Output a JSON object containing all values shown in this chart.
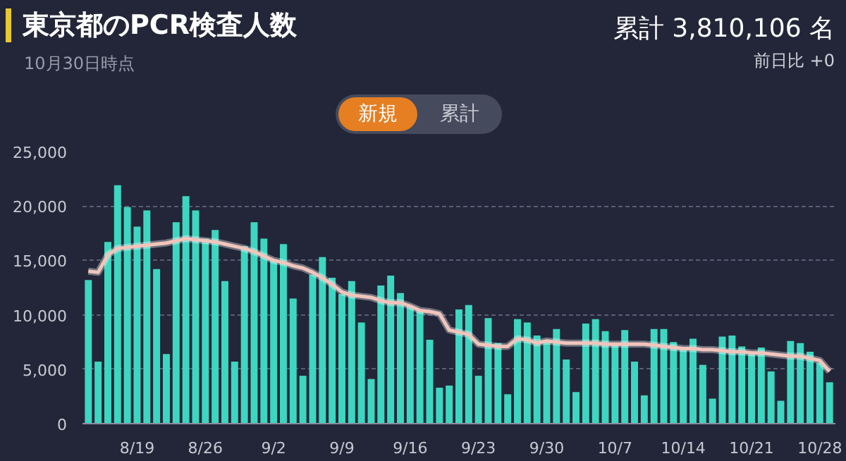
{
  "chart_data": {
    "type": "bar",
    "title": "東京都のPCR検査人数",
    "subtitle": "10月30日時点",
    "annotations": [
      "累計 3,810,106 名",
      "前日比 +0",
      "新規",
      "累計"
    ],
    "categories": [
      null,
      null,
      null,
      null,
      null,
      "8/19",
      null,
      null,
      null,
      null,
      null,
      null,
      "8/26",
      null,
      null,
      null,
      null,
      null,
      null,
      "9/2",
      null,
      null,
      null,
      null,
      null,
      null,
      "9/9",
      null,
      null,
      null,
      null,
      null,
      null,
      "9/16",
      null,
      null,
      null,
      null,
      null,
      null,
      "9/23",
      null,
      null,
      null,
      null,
      null,
      null,
      "9/30",
      null,
      null,
      null,
      null,
      null,
      null,
      "10/7",
      null,
      null,
      null,
      null,
      null,
      null,
      "10/14",
      null,
      null,
      null,
      null,
      null,
      null,
      "10/21",
      null,
      null,
      null,
      null,
      null,
      null,
      "10/28",
      null
    ],
    "series": [
      {
        "color": "#3dd6c0",
        "values": [
          13200,
          5700,
          16700,
          21900,
          19900,
          18100,
          19600,
          14200,
          6400,
          18500,
          20900,
          19600,
          17000,
          17800,
          13100,
          5700,
          16300,
          18500,
          17000,
          15000,
          16500,
          11500,
          4400,
          13700,
          15300,
          13400,
          11900,
          13100,
          9300,
          4100,
          12700,
          13600,
          12000,
          10800,
          10400,
          7700,
          3300,
          3500,
          10500,
          10900,
          4400,
          9700,
          7400,
          2700,
          9600,
          9300,
          8100,
          7700,
          8700,
          5900,
          2900,
          9200,
          9600,
          8500,
          7300,
          8600,
          5700,
          2600,
          8700,
          8700,
          7500,
          6800,
          7800,
          5400,
          2300,
          8000,
          8100,
          7100,
          6400,
          7000,
          4800,
          2100,
          7600,
          7400,
          6600,
          5600,
          3800
        ]
      },
      {
        "type": "line",
        "color": "#f2c4bb",
        "values": [
          14000,
          13900,
          15500,
          16100,
          16200,
          16300,
          16400,
          16500,
          16600,
          16800,
          17000,
          16900,
          16800,
          16700,
          16500,
          16300,
          16100,
          15800,
          15400,
          15000,
          14800,
          14500,
          14300,
          13900,
          13400,
          12800,
          12100,
          11800,
          11700,
          11600,
          11300,
          11100,
          11100,
          10800,
          10400,
          10300,
          10100,
          8600,
          8400,
          8200,
          7300,
          7200,
          7100,
          7100,
          7800,
          7700,
          7400,
          7600,
          7500,
          7400,
          7400,
          7400,
          7400,
          7300,
          7300,
          7300,
          7300,
          7300,
          7200,
          7100,
          7000,
          6900,
          6900,
          6800,
          6800,
          6700,
          6600,
          6600,
          6500,
          6500,
          6400,
          6300,
          6200,
          6200,
          6000,
          5800,
          4800
        ]
      }
    ],
    "ylim": [
      0,
      25000
    ],
    "yticks": [
      0,
      {
        "value": 5000,
        "label": "5,000"
      },
      {
        "value": 10000,
        "label": "10,000"
      },
      {
        "value": 15000,
        "label": "15,000"
      },
      {
        "value": 20000,
        "label": "20,000"
      },
      {
        "value": 25000,
        "label": "25,000"
      }
    ],
    "grid": "y"
  }
}
